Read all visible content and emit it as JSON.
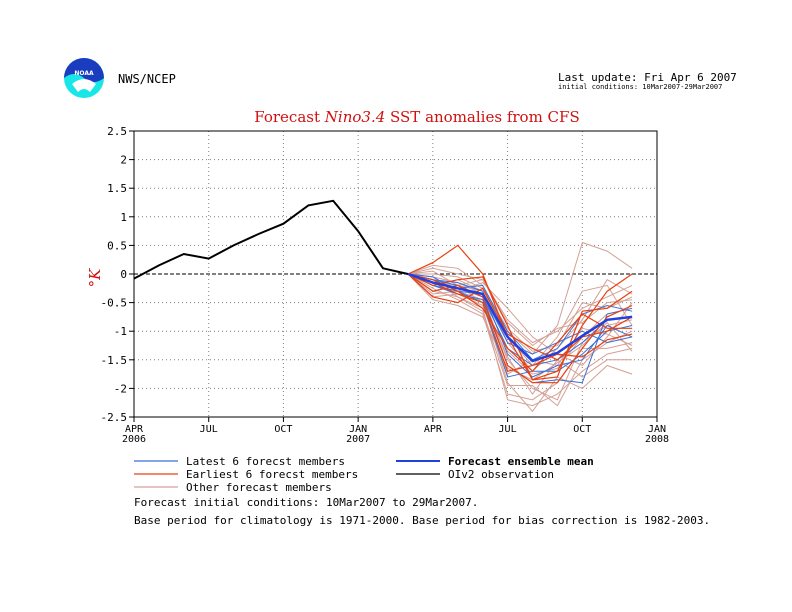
{
  "header": {
    "agency": "NWS/NCEP",
    "logo_text": "NOAA",
    "last_update": "Last update: Fri Apr 6 2007",
    "initial_conditions_range": "initial conditions: 10Mar2007-29Mar2007"
  },
  "notes": [
    "Forecast initial conditions: 10Mar2007 to 29Mar2007.",
    "Base period for climatology is 1971-2000. Base period for bias correction is 1982-2003."
  ],
  "colors": {
    "observation": "#000000",
    "mean": "#2040e0",
    "latest": "#3a6fd8",
    "earliest": "#e84010",
    "other": "#d4a096",
    "title": "#d01010",
    "logo_blue": "#1a3cbf",
    "logo_cyan": "#19e6e6"
  },
  "chart_data": {
    "type": "line",
    "title_parts": [
      "Forecast ",
      "Nino3.4",
      " SST anomalies from CFS"
    ],
    "ylabel": "°K",
    "xlim": [
      0,
      21
    ],
    "ylim": [
      -2.5,
      2.5
    ],
    "yticks": [
      "2.5",
      "2",
      "1.5",
      "1",
      "0.5",
      "0",
      "-0.5",
      "-1",
      "-1.5",
      "-2",
      "-2.5"
    ],
    "xticks": [
      {
        "x": 0,
        "label": "APR",
        "sub": "2006"
      },
      {
        "x": 3,
        "label": "JUL",
        "sub": ""
      },
      {
        "x": 6,
        "label": "OCT",
        "sub": ""
      },
      {
        "x": 9,
        "label": "JAN",
        "sub": "2007"
      },
      {
        "x": 12,
        "label": "APR",
        "sub": ""
      },
      {
        "x": 15,
        "label": "JUL",
        "sub": ""
      },
      {
        "x": 18,
        "label": "OCT",
        "sub": ""
      },
      {
        "x": 21,
        "label": "JAN",
        "sub": "2008"
      }
    ],
    "grid": true,
    "legend": [
      {
        "label": "Latest 6 forecst members",
        "key": "latest"
      },
      {
        "label": "Forecast ensemble mean",
        "key": "mean",
        "bold": true
      },
      {
        "label": "Earliest 6 forecst members",
        "key": "earliest"
      },
      {
        "label": "OIv2 observation",
        "key": "observation"
      },
      {
        "label": "Other forecast members",
        "key": "other"
      }
    ],
    "observation": {
      "x": [
        0,
        1,
        2,
        3,
        4,
        5,
        6,
        7,
        8,
        9,
        10,
        11
      ],
      "y": [
        -0.08,
        0.15,
        0.35,
        0.27,
        0.5,
        0.7,
        0.88,
        1.2,
        1.28,
        0.75,
        0.1,
        0.0
      ]
    },
    "mean": {
      "x": [
        11,
        12,
        13,
        14,
        15,
        16,
        17,
        18,
        19,
        20
      ],
      "y": [
        0.0,
        -0.15,
        -0.25,
        -0.35,
        -1.1,
        -1.52,
        -1.38,
        -1.08,
        -0.8,
        -0.75
      ]
    },
    "forecast_x": [
      11,
      12,
      13,
      14,
      15,
      16,
      17,
      18,
      19,
      20
    ],
    "latest_members": [
      [
        0.0,
        -0.1,
        -0.2,
        -0.4,
        -1.3,
        -1.6,
        -1.5,
        -1.2,
        -0.8,
        -0.75
      ],
      [
        0.0,
        -0.2,
        -0.35,
        -0.45,
        -1.6,
        -1.9,
        -1.85,
        -1.9,
        -0.7,
        -0.6
      ],
      [
        0.0,
        -0.15,
        -0.25,
        -0.2,
        -1.0,
        -1.5,
        -1.3,
        -0.7,
        -0.55,
        -0.65
      ],
      [
        0.0,
        -0.05,
        -0.3,
        -0.5,
        -1.8,
        -1.7,
        -1.7,
        -1.4,
        -1.0,
        -0.9
      ],
      [
        0.0,
        -0.2,
        -0.3,
        -0.35,
        -1.2,
        -1.4,
        -1.2,
        -1.0,
        -1.2,
        -1.1
      ],
      [
        0.0,
        -0.1,
        -0.15,
        -0.3,
        -1.4,
        -1.8,
        -1.6,
        -1.5,
        -0.9,
        -1.1
      ]
    ],
    "earliest_members": [
      [
        0.0,
        0.2,
        0.5,
        0.0,
        -1.1,
        -1.85,
        -1.7,
        -0.9,
        -0.3,
        0.0
      ],
      [
        0.0,
        -0.2,
        -0.1,
        -0.05,
        -0.9,
        -1.85,
        -1.8,
        -0.65,
        -0.6,
        -0.3
      ],
      [
        0.0,
        -0.3,
        -0.2,
        -0.4,
        -1.6,
        -1.9,
        -1.9,
        -1.3,
        -0.75,
        -0.55
      ],
      [
        0.0,
        -0.1,
        -0.3,
        -0.6,
        -1.3,
        -1.7,
        -1.2,
        -0.7,
        -0.95,
        -0.95
      ],
      [
        0.0,
        -0.4,
        -0.5,
        -0.25,
        -1.05,
        -1.3,
        -1.5,
        -1.1,
        -1.0,
        -0.75
      ],
      [
        0.0,
        -0.15,
        -0.35,
        -0.5,
        -1.7,
        -1.6,
        -1.4,
        -1.45,
        -1.15,
        -1.05
      ]
    ],
    "other_members": [
      [
        0.0,
        0.1,
        0.0,
        -0.1,
        -0.8,
        -1.2,
        -1.0,
        -0.6,
        -0.4,
        -0.2
      ],
      [
        0.0,
        -0.3,
        -0.4,
        -0.6,
        -2.2,
        -2.3,
        -2.1,
        -1.7,
        -1.4,
        -1.3
      ],
      [
        0.0,
        -0.2,
        -0.1,
        -0.3,
        -1.0,
        -1.4,
        -0.9,
        0.55,
        0.4,
        0.1
      ],
      [
        0.0,
        0.05,
        -0.2,
        -0.5,
        -1.9,
        -2.4,
        -1.8,
        -2.0,
        -1.6,
        -1.75
      ],
      [
        0.0,
        -0.1,
        -0.25,
        -0.4,
        -1.5,
        -2.0,
        -2.2,
        -1.2,
        -0.9,
        -0.8
      ],
      [
        0.0,
        -0.35,
        -0.3,
        -0.15,
        -0.6,
        -1.1,
        -1.4,
        -1.6,
        -1.1,
        -0.5
      ],
      [
        0.0,
        0.15,
        0.1,
        -0.2,
        -1.2,
        -1.7,
        -1.3,
        -0.8,
        -0.1,
        -0.35
      ],
      [
        0.0,
        -0.25,
        -0.45,
        -0.7,
        -2.1,
        -2.2,
        -1.9,
        -1.3,
        -1.3,
        -1.2
      ],
      [
        0.0,
        -0.05,
        -0.15,
        -0.35,
        -1.35,
        -1.75,
        -1.65,
        -1.1,
        -0.7,
        -0.6
      ],
      [
        0.0,
        -0.4,
        -0.35,
        -0.55,
        -1.75,
        -1.5,
        -1.6,
        -0.95,
        -1.05,
        -1.25
      ],
      [
        0.0,
        0.0,
        -0.05,
        -0.25,
        -0.95,
        -1.35,
        -1.25,
        -0.5,
        -0.6,
        -0.4
      ],
      [
        0.0,
        -0.2,
        -0.3,
        -0.45,
        -1.45,
        -2.1,
        -1.5,
        -1.8,
        -1.5,
        -1.5
      ],
      [
        0.0,
        -0.3,
        -0.2,
        -0.3,
        -1.1,
        -1.6,
        -1.1,
        -0.3,
        -0.2,
        -0.9
      ],
      [
        0.0,
        -0.1,
        -0.4,
        -0.65,
        -1.95,
        -1.95,
        -2.3,
        -1.5,
        -1.2,
        -1.0
      ],
      [
        0.0,
        -0.15,
        -0.2,
        -0.1,
        -0.85,
        -1.25,
        -0.95,
        -0.85,
        -0.5,
        -0.45
      ],
      [
        0.0,
        -0.45,
        -0.55,
        -0.75,
        -1.65,
        -1.85,
        -1.55,
        -1.25,
        -0.85,
        -1.35
      ]
    ]
  }
}
